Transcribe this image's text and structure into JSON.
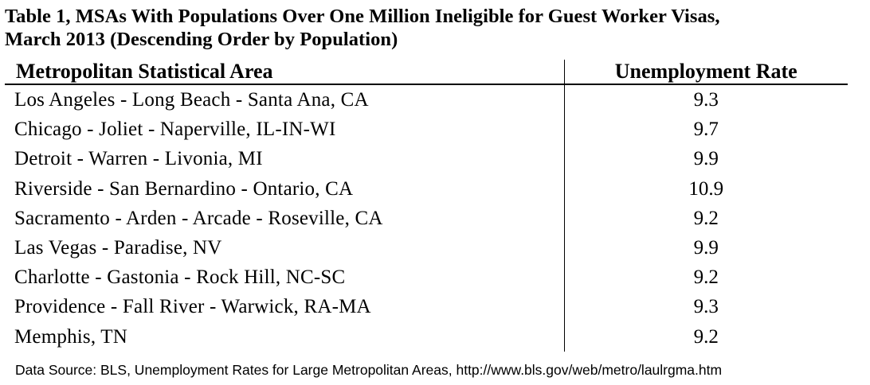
{
  "title": {
    "line1": "Table 1, MSAs With Populations Over One Million Ineligible for Guest Worker Visas,",
    "line2": "March 2013 (Descending Order by Population)"
  },
  "table": {
    "headers": {
      "area": "Metropolitan Statistical Area",
      "rate": "Unemployment Rate"
    },
    "rows": [
      {
        "area": "Los Angeles - Long Beach - Santa Ana, CA",
        "rate": "9.3"
      },
      {
        "area": "Chicago - Joliet - Naperville, IL-IN-WI",
        "rate": "9.7"
      },
      {
        "area": "Detroit - Warren - Livonia, MI",
        "rate": "9.9"
      },
      {
        "area": "Riverside - San Bernardino - Ontario, CA",
        "rate": "10.9"
      },
      {
        "area": "Sacramento - Arden - Arcade - Roseville, CA",
        "rate": "9.2"
      },
      {
        "area": "Las Vegas - Paradise, NV",
        "rate": "9.9"
      },
      {
        "area": "Charlotte - Gastonia - Rock Hill, NC-SC",
        "rate": "9.2"
      },
      {
        "area": "Providence - Fall River - Warwick, RA-MA",
        "rate": "9.3"
      },
      {
        "area": "Memphis, TN",
        "rate": "9.2"
      }
    ]
  },
  "source": "Data Source: BLS, Unemployment Rates for Large Metropolitan Areas, http://www.bls.gov/web/metro/laulrgma.htm"
}
